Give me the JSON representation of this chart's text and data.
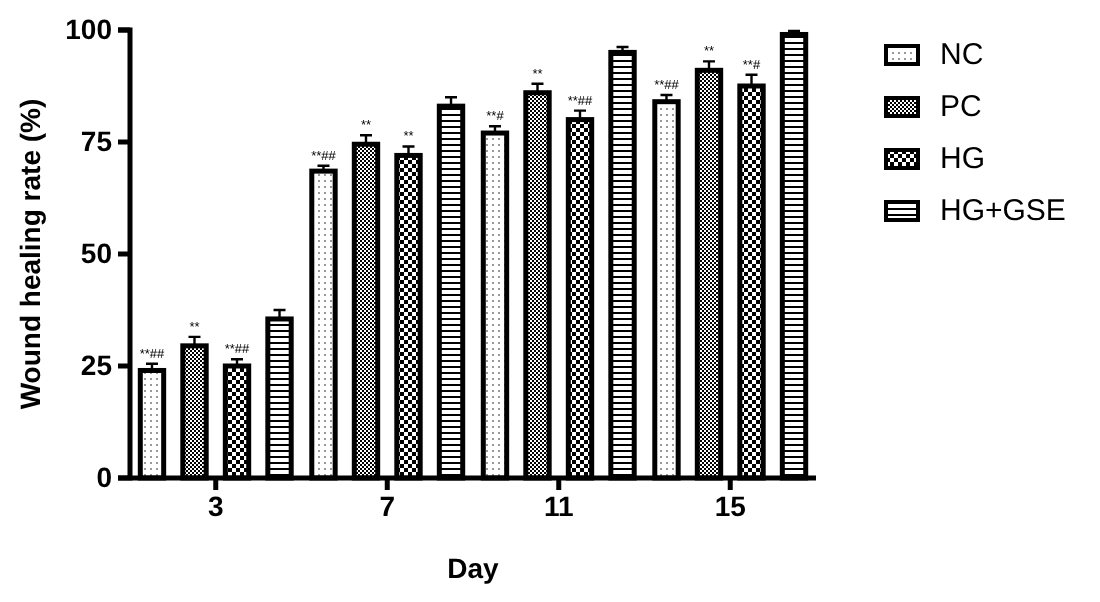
{
  "chart_data": {
    "type": "bar",
    "xlabel": "Day",
    "ylabel": "Wound healing rate (%)",
    "categories": [
      "3",
      "7",
      "11",
      "15"
    ],
    "series": [
      {
        "name": "NC",
        "color": "#000000",
        "values": [
          24,
          68.5,
          77,
          84
        ],
        "errors": [
          1.5,
          1.2,
          1.5,
          1.5
        ],
        "value_labels": [
          "**##",
          "**##",
          "**#",
          "**##"
        ]
      },
      {
        "name": "PC",
        "color": "#000000",
        "values": [
          29.5,
          74.5,
          86,
          91
        ],
        "errors": [
          2,
          2,
          2,
          2
        ],
        "value_labels": [
          "**",
          "**",
          "**",
          "**"
        ]
      },
      {
        "name": "HG",
        "color": "#000000",
        "values": [
          25,
          72,
          80,
          87.5
        ],
        "errors": [
          1.5,
          2,
          2,
          2.5
        ],
        "value_labels": [
          "**##",
          "**",
          "**##",
          "**#"
        ]
      },
      {
        "name": "HG+GSE",
        "color": "#000000",
        "values": [
          35.5,
          83,
          95,
          99
        ],
        "errors": [
          2,
          2,
          1.2,
          0.8
        ]
      }
    ],
    "ylim": [
      0,
      100
    ],
    "yticks": [
      0,
      25,
      50,
      75,
      100
    ],
    "grid": false,
    "legend": "right"
  }
}
